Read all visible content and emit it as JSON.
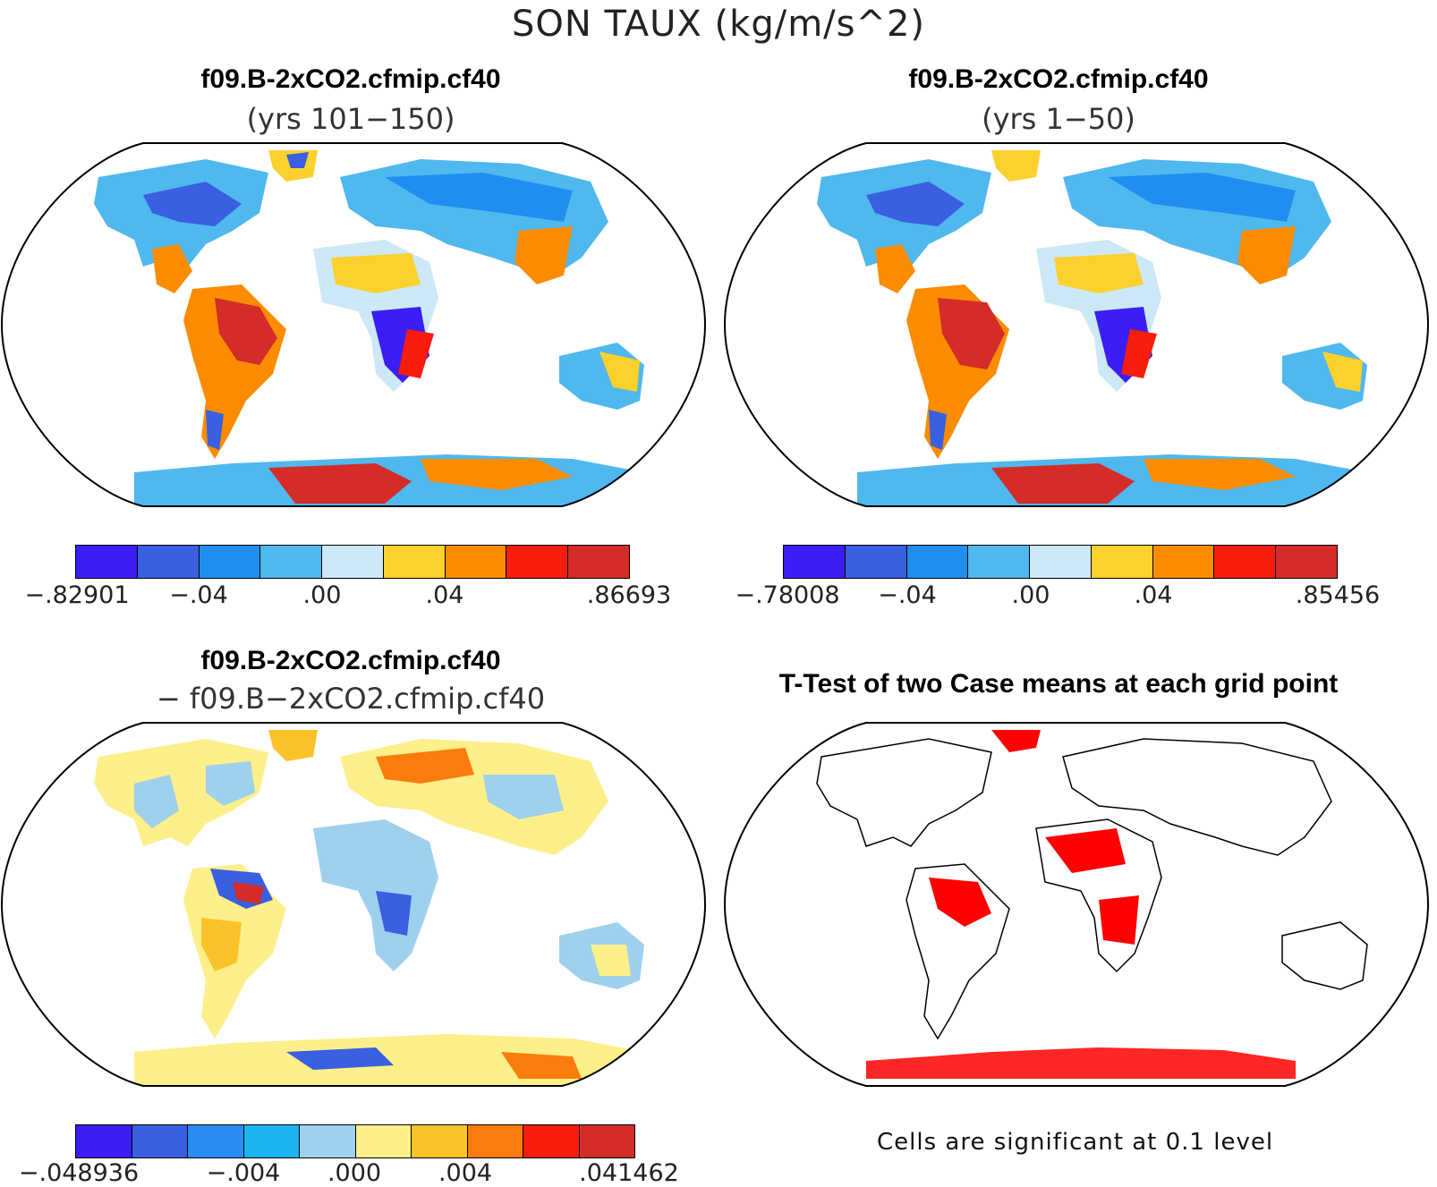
{
  "figure": {
    "title": "SON TAUX (kg/m/s^2)"
  },
  "panels": [
    {
      "id": "top-left",
      "title": "f09.B-2xCO2.cfmip.cf40",
      "subtitle": "(yrs 101−150)"
    },
    {
      "id": "top-right",
      "title": "f09.B-2xCO2.cfmip.cf40",
      "subtitle": "(yrs 1−50)"
    },
    {
      "id": "bottom-left",
      "title": "f09.B-2xCO2.cfmip.cf40",
      "subtitle": "− f09.B−2xCO2.cfmip.cf40"
    },
    {
      "id": "bottom-right",
      "title": "T-Test of two Case means at each grid point",
      "subtitle": "",
      "note": "Cells are significant at 0.1 level"
    }
  ],
  "colorbars": {
    "top_left": {
      "colors": [
        "#3a1ef5",
        "#3a5fe0",
        "#1f8ef0",
        "#4fb8ee",
        "#cde8f6",
        "#fcd12e",
        "#fb8c00",
        "#f81c0c",
        "#d42c28"
      ],
      "labels": [
        ".82901 neg",
        "-.04",
        ".00",
        ".04",
        ".86693"
      ],
      "label_text": [
        "−.82901",
        "−.04",
        ".00",
        ".04",
        ".86693"
      ]
    },
    "top_right": {
      "colors": [
        "#3a1ef5",
        "#3a5fe0",
        "#1f8ef0",
        "#4fb8ee",
        "#cde8f6",
        "#fcd12e",
        "#fb8c00",
        "#f81c0c",
        "#d42c28"
      ],
      "label_text": [
        "−.78008",
        "−.04",
        ".00",
        ".04",
        ".85456"
      ]
    },
    "bottom_left": {
      "colors": [
        "#3a1ef5",
        "#3a5fe0",
        "#2a8cf0",
        "#1cb4f0",
        "#9fd0ee",
        "#fdf08a",
        "#fcc22a",
        "#fb7c0c",
        "#f81c0c",
        "#d42c28"
      ],
      "label_text": [
        "−.048936",
        "−.004",
        ".000",
        ".004",
        ".041462"
      ]
    }
  },
  "significance_color": "#ff0000",
  "coastline_color": "#000000"
}
